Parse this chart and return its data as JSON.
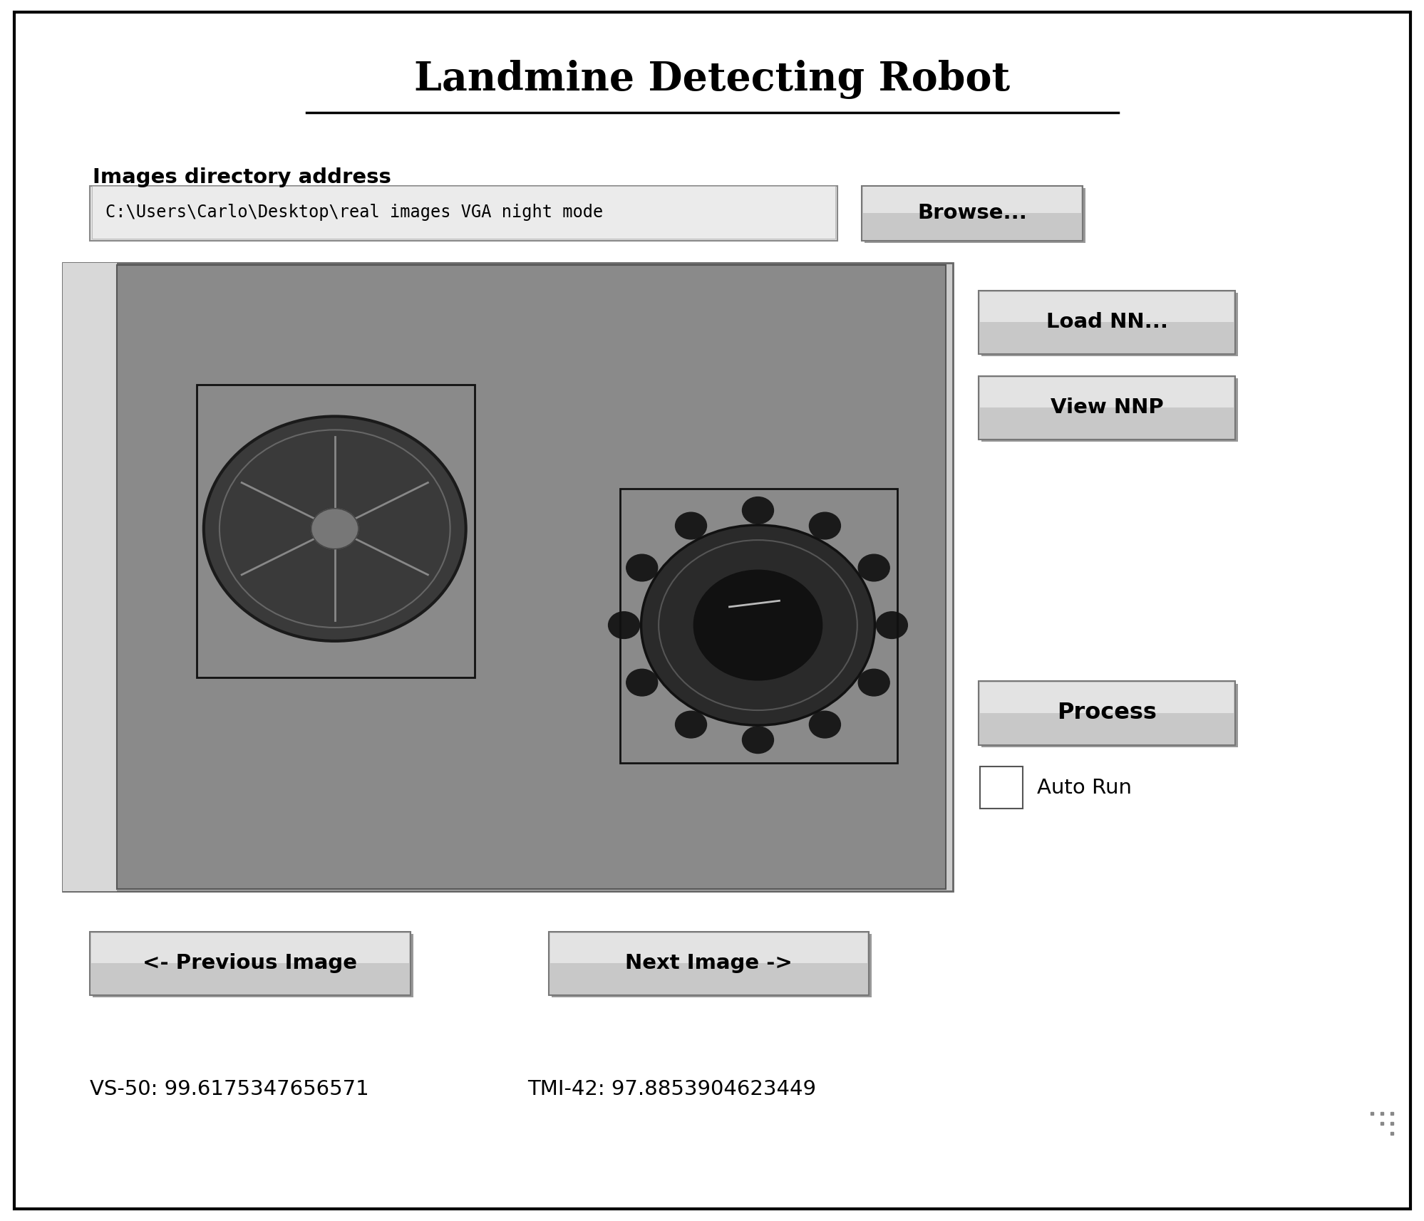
{
  "title": "Landmine Detecting Robot",
  "bg_color": "#ffffff",
  "outer_border_color": "#000000",
  "label_dir": "Images directory address",
  "path_text": "C:\\Users\\Carlo\\Desktop\\real images VGA night mode",
  "btn_browse": "Browse...",
  "btn_load": "Load NN...",
  "btn_view": "View NNP",
  "btn_process": "Process",
  "btn_prev": "<- Previous Image",
  "btn_next": "Next Image ->",
  "chk_autorun": "Auto Run",
  "status_vs50": "VS-50: 99.6175347656571",
  "status_tmi42": "TMI-42: 97.8853904623449",
  "image_bg": "#888888",
  "mine1_color": "#4a4a4a",
  "mine2_color": "#2a2a2a"
}
